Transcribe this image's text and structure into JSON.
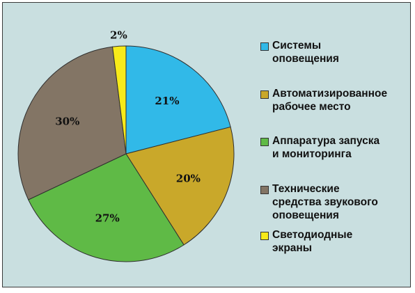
{
  "chart_data": {
    "type": "pie",
    "slices": [
      {
        "label": "Системы\nоповещения",
        "value": 21,
        "value_label": "21%",
        "color": "#31b9e8"
      },
      {
        "label": "Автоматизированное\nрабочее место",
        "value": 20,
        "value_label": "20%",
        "color": "#c9a82a"
      },
      {
        "label": "Аппаратура запуска\nи мониторинга",
        "value": 27,
        "value_label": "27%",
        "color": "#5fba46"
      },
      {
        "label": "Технические\nсредства звукового\nоповещения",
        "value": 30,
        "value_label": "30%",
        "color": "#837565"
      },
      {
        "label": "Светодиодные\nэкраны",
        "value": 2,
        "value_label": "2%",
        "color": "#f7ea1a"
      }
    ],
    "start_angle": "12 o'clock",
    "direction": "clockwise",
    "legend_position": "right"
  }
}
